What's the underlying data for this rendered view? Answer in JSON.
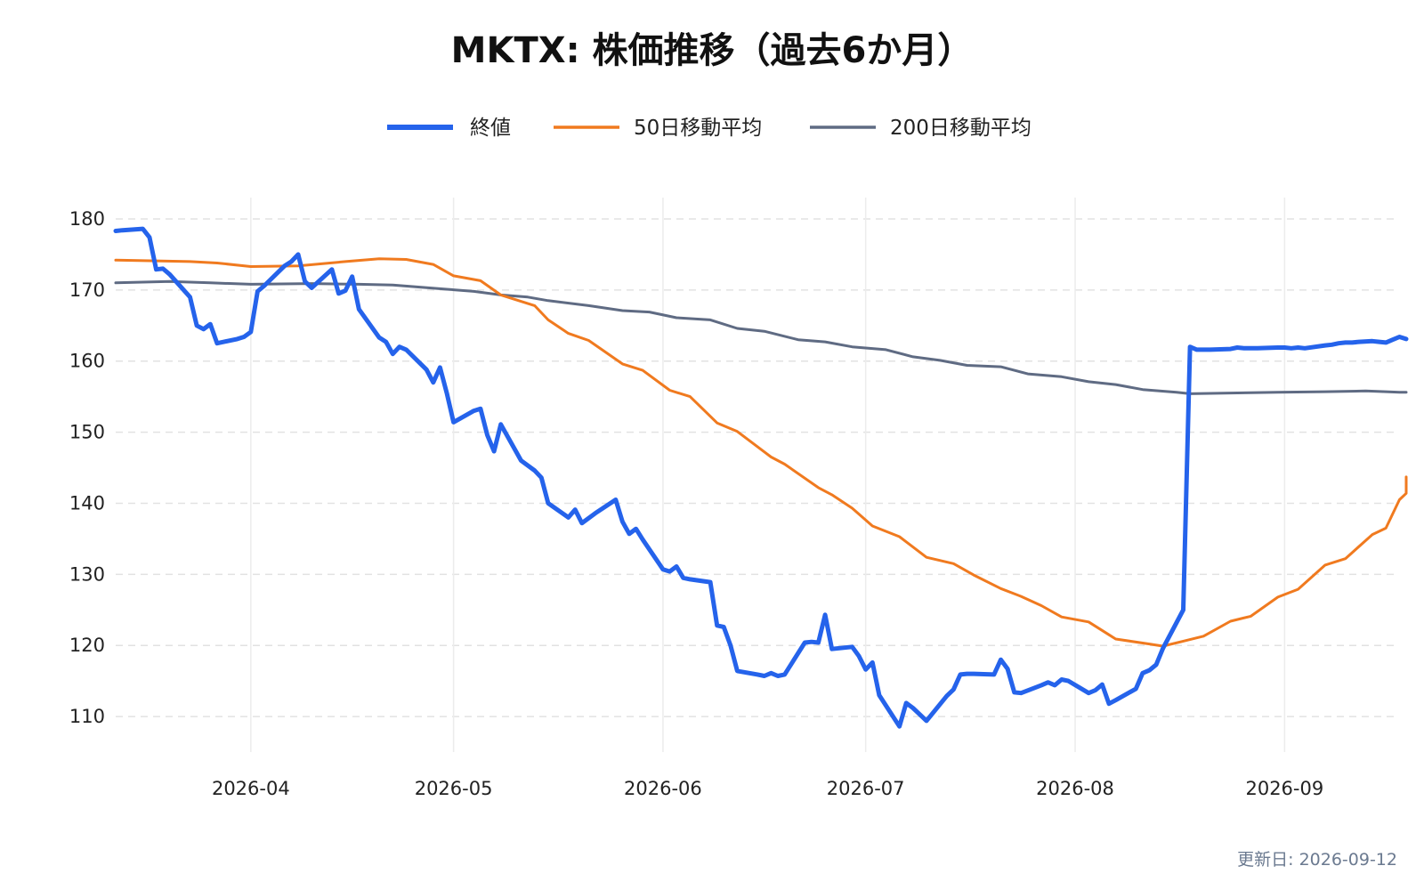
{
  "chart_data": {
    "type": "line",
    "title": "MKTX: 株価推移（過去6か月）",
    "xlabel": "",
    "ylabel": "",
    "x_type": "date",
    "xlim": [
      "2026-03-12",
      "2026-09-19"
    ],
    "ylim": [
      105,
      183
    ],
    "yticks": [
      110,
      120,
      130,
      140,
      150,
      160,
      170,
      180
    ],
    "xticks": [
      "2026-04-01",
      "2026-05-01",
      "2026-06-01",
      "2026-07-01",
      "2026-08-01",
      "2026-09-01"
    ],
    "xtick_labels": [
      "2026-04",
      "2026-05",
      "2026-06",
      "2026-07",
      "2026-08",
      "2026-09"
    ],
    "grid": true,
    "legend_position": "top-center",
    "updated_label": "更新日: 2026-09-12",
    "series": [
      {
        "name": "終値",
        "color": "#2563eb",
        "width": 5,
        "points": [
          [
            "2026-03-12",
            178.3
          ],
          [
            "2026-03-13",
            178.4
          ],
          [
            "2026-03-16",
            178.6
          ],
          [
            "2026-03-17",
            177.4
          ],
          [
            "2026-03-18",
            172.9
          ],
          [
            "2026-03-19",
            173.0
          ],
          [
            "2026-03-20",
            172.2
          ],
          [
            "2026-03-23",
            169.0
          ],
          [
            "2026-03-24",
            165.0
          ],
          [
            "2026-03-25",
            164.5
          ],
          [
            "2026-03-26",
            165.2
          ],
          [
            "2026-03-27",
            162.5
          ],
          [
            "2026-03-30",
            163.1
          ],
          [
            "2026-03-31",
            163.4
          ],
          [
            "2026-04-01",
            164.1
          ],
          [
            "2026-04-02",
            169.8
          ],
          [
            "2026-04-03",
            170.6
          ],
          [
            "2026-04-06",
            173.4
          ],
          [
            "2026-04-07",
            174.0
          ],
          [
            "2026-04-08",
            175.0
          ],
          [
            "2026-04-09",
            171.2
          ],
          [
            "2026-04-10",
            170.3
          ],
          [
            "2026-04-13",
            172.9
          ],
          [
            "2026-04-14",
            169.5
          ],
          [
            "2026-04-15",
            169.9
          ],
          [
            "2026-04-16",
            171.9
          ],
          [
            "2026-04-17",
            167.3
          ],
          [
            "2026-04-20",
            163.3
          ],
          [
            "2026-04-21",
            162.7
          ],
          [
            "2026-04-22",
            161.0
          ],
          [
            "2026-04-23",
            162.0
          ],
          [
            "2026-04-24",
            161.6
          ],
          [
            "2026-04-27",
            158.8
          ],
          [
            "2026-04-28",
            157.0
          ],
          [
            "2026-04-29",
            159.1
          ],
          [
            "2026-04-30",
            155.5
          ],
          [
            "2026-05-01",
            151.4
          ],
          [
            "2026-05-04",
            153.0
          ],
          [
            "2026-05-05",
            153.3
          ],
          [
            "2026-05-06",
            149.6
          ],
          [
            "2026-05-07",
            147.3
          ],
          [
            "2026-05-08",
            151.1
          ],
          [
            "2026-05-11",
            146.0
          ],
          [
            "2026-05-13",
            144.6
          ],
          [
            "2026-05-14",
            143.6
          ],
          [
            "2026-05-15",
            140.0
          ],
          [
            "2026-05-18",
            138.0
          ],
          [
            "2026-05-19",
            139.1
          ],
          [
            "2026-05-20",
            137.2
          ],
          [
            "2026-05-22",
            138.6
          ],
          [
            "2026-05-25",
            140.5
          ],
          [
            "2026-05-26",
            137.4
          ],
          [
            "2026-05-27",
            135.7
          ],
          [
            "2026-05-28",
            136.4
          ],
          [
            "2026-05-29",
            134.9
          ],
          [
            "2026-06-01",
            130.7
          ],
          [
            "2026-06-02",
            130.4
          ],
          [
            "2026-06-03",
            131.1
          ],
          [
            "2026-06-04",
            129.5
          ],
          [
            "2026-06-05",
            129.3
          ],
          [
            "2026-06-08",
            128.9
          ],
          [
            "2026-06-09",
            122.8
          ],
          [
            "2026-06-10",
            122.6
          ],
          [
            "2026-06-11",
            120.0
          ],
          [
            "2026-06-12",
            116.4
          ],
          [
            "2026-06-15",
            115.9
          ],
          [
            "2026-06-16",
            115.7
          ],
          [
            "2026-06-17",
            116.1
          ],
          [
            "2026-06-18",
            115.7
          ],
          [
            "2026-06-19",
            115.9
          ],
          [
            "2026-06-22",
            120.4
          ],
          [
            "2026-06-23",
            120.5
          ],
          [
            "2026-06-24",
            120.4
          ],
          [
            "2026-06-25",
            124.3
          ],
          [
            "2026-06-26",
            119.5
          ],
          [
            "2026-06-29",
            119.8
          ],
          [
            "2026-06-30",
            118.5
          ],
          [
            "2026-07-01",
            116.6
          ],
          [
            "2026-07-02",
            117.6
          ],
          [
            "2026-07-03",
            113.0
          ],
          [
            "2026-07-06",
            108.6
          ],
          [
            "2026-07-07",
            111.9
          ],
          [
            "2026-07-08",
            111.2
          ],
          [
            "2026-07-09",
            110.3
          ],
          [
            "2026-07-10",
            109.4
          ],
          [
            "2026-07-13",
            112.9
          ],
          [
            "2026-07-14",
            113.8
          ],
          [
            "2026-07-15",
            115.9
          ],
          [
            "2026-07-16",
            116.0
          ],
          [
            "2026-07-17",
            116.0
          ],
          [
            "2026-07-20",
            115.9
          ],
          [
            "2026-07-21",
            118.0
          ],
          [
            "2026-07-22",
            116.7
          ],
          [
            "2026-07-23",
            113.4
          ],
          [
            "2026-07-24",
            113.3
          ],
          [
            "2026-07-27",
            114.4
          ],
          [
            "2026-07-28",
            114.8
          ],
          [
            "2026-07-29",
            114.4
          ],
          [
            "2026-07-30",
            115.2
          ],
          [
            "2026-07-31",
            115.0
          ],
          [
            "2026-08-03",
            113.3
          ],
          [
            "2026-08-04",
            113.7
          ],
          [
            "2026-08-05",
            114.5
          ],
          [
            "2026-08-06",
            111.8
          ],
          [
            "2026-08-07",
            112.3
          ],
          [
            "2026-08-10",
            113.9
          ],
          [
            "2026-08-11",
            116.1
          ],
          [
            "2026-08-12",
            116.5
          ],
          [
            "2026-08-13",
            117.3
          ],
          [
            "2026-08-14",
            119.6
          ],
          [
            "2026-08-17",
            125.0
          ],
          [
            "2026-08-18",
            162.0
          ],
          [
            "2026-08-19",
            161.6
          ],
          [
            "2026-08-20",
            161.6
          ],
          [
            "2026-08-21",
            161.6
          ],
          [
            "2026-08-24",
            161.7
          ],
          [
            "2026-08-25",
            161.9
          ],
          [
            "2026-08-26",
            161.8
          ],
          [
            "2026-08-27",
            161.8
          ],
          [
            "2026-08-28",
            161.8
          ],
          [
            "2026-08-31",
            161.9
          ],
          [
            "2026-09-01",
            161.9
          ],
          [
            "2026-09-02",
            161.8
          ],
          [
            "2026-09-03",
            161.9
          ],
          [
            "2026-09-04",
            161.8
          ],
          [
            "2026-09-07",
            162.2
          ],
          [
            "2026-09-08",
            162.3
          ],
          [
            "2026-09-09",
            162.5
          ],
          [
            "2026-09-10",
            162.6
          ],
          [
            "2026-09-11",
            162.6
          ],
          [
            "2026-09-12",
            162.7
          ],
          [
            "2026-09-14",
            162.8
          ],
          [
            "2026-09-15",
            162.7
          ],
          [
            "2026-09-16",
            162.6
          ],
          [
            "2026-09-17",
            163.0
          ],
          [
            "2026-09-18",
            163.4
          ],
          [
            "2026-09-19",
            163.1
          ]
        ]
      },
      {
        "name": "50日移動平均",
        "color": "#f07a1f",
        "width": 3,
        "points": [
          [
            "2026-03-12",
            174.2
          ],
          [
            "2026-03-23",
            174.0
          ],
          [
            "2026-03-27",
            173.8
          ],
          [
            "2026-04-01",
            173.3
          ],
          [
            "2026-04-08",
            173.4
          ],
          [
            "2026-04-15",
            174.0
          ],
          [
            "2026-04-20",
            174.4
          ],
          [
            "2026-04-24",
            174.3
          ],
          [
            "2026-04-28",
            173.6
          ],
          [
            "2026-05-01",
            172.0
          ],
          [
            "2026-05-05",
            171.3
          ],
          [
            "2026-05-08",
            169.3
          ],
          [
            "2026-05-13",
            167.8
          ],
          [
            "2026-05-15",
            165.8
          ],
          [
            "2026-05-18",
            163.9
          ],
          [
            "2026-05-21",
            162.9
          ],
          [
            "2026-05-26",
            159.6
          ],
          [
            "2026-05-29",
            158.7
          ],
          [
            "2026-06-02",
            155.9
          ],
          [
            "2026-06-05",
            155.0
          ],
          [
            "2026-06-09",
            151.3
          ],
          [
            "2026-06-12",
            150.1
          ],
          [
            "2026-06-17",
            146.5
          ],
          [
            "2026-06-19",
            145.5
          ],
          [
            "2026-06-24",
            142.2
          ],
          [
            "2026-06-26",
            141.2
          ],
          [
            "2026-06-29",
            139.3
          ],
          [
            "2026-07-02",
            136.8
          ],
          [
            "2026-07-06",
            135.3
          ],
          [
            "2026-07-10",
            132.4
          ],
          [
            "2026-07-14",
            131.5
          ],
          [
            "2026-07-17",
            129.9
          ],
          [
            "2026-07-21",
            128.0
          ],
          [
            "2026-07-24",
            126.9
          ],
          [
            "2026-07-27",
            125.6
          ],
          [
            "2026-07-30",
            124.0
          ],
          [
            "2026-08-03",
            123.3
          ],
          [
            "2026-08-06",
            121.5
          ],
          [
            "2026-08-07",
            120.9
          ],
          [
            "2026-08-12",
            120.2
          ],
          [
            "2026-08-14",
            119.9
          ],
          [
            "2026-08-17",
            120.6
          ],
          [
            "2026-08-20",
            121.3
          ],
          [
            "2026-08-24",
            123.4
          ],
          [
            "2026-08-27",
            124.1
          ],
          [
            "2026-08-31",
            126.8
          ],
          [
            "2026-09-03",
            127.9
          ],
          [
            "2026-09-07",
            131.3
          ],
          [
            "2026-09-10",
            132.2
          ],
          [
            "2026-09-14",
            135.6
          ],
          [
            "2026-09-16",
            136.5
          ],
          [
            "2026-09-18",
            140.5
          ],
          [
            "2026-09-19",
            141.4
          ],
          [
            "2026-09-19",
            143.7
          ]
        ]
      },
      {
        "name": "200日移動平均",
        "color": "#5f6b83",
        "width": 3,
        "points": [
          [
            "2026-03-12",
            171.0
          ],
          [
            "2026-03-20",
            171.2
          ],
          [
            "2026-03-26",
            171.0
          ],
          [
            "2026-04-01",
            170.8
          ],
          [
            "2026-04-10",
            170.9
          ],
          [
            "2026-04-17",
            170.8
          ],
          [
            "2026-04-22",
            170.7
          ],
          [
            "2026-04-30",
            170.1
          ],
          [
            "2026-05-04",
            169.8
          ],
          [
            "2026-05-08",
            169.3
          ],
          [
            "2026-05-12",
            169.0
          ],
          [
            "2026-05-15",
            168.5
          ],
          [
            "2026-05-21",
            167.8
          ],
          [
            "2026-05-26",
            167.1
          ],
          [
            "2026-05-30",
            166.9
          ],
          [
            "2026-06-03",
            166.1
          ],
          [
            "2026-06-08",
            165.8
          ],
          [
            "2026-06-12",
            164.6
          ],
          [
            "2026-06-16",
            164.2
          ],
          [
            "2026-06-21",
            163.0
          ],
          [
            "2026-06-25",
            162.7
          ],
          [
            "2026-06-29",
            162.0
          ],
          [
            "2026-07-04",
            161.6
          ],
          [
            "2026-07-08",
            160.6
          ],
          [
            "2026-07-12",
            160.1
          ],
          [
            "2026-07-16",
            159.4
          ],
          [
            "2026-07-21",
            159.2
          ],
          [
            "2026-07-25",
            158.2
          ],
          [
            "2026-07-30",
            157.8
          ],
          [
            "2026-08-03",
            157.1
          ],
          [
            "2026-08-07",
            156.7
          ],
          [
            "2026-08-11",
            156.0
          ],
          [
            "2026-08-16",
            155.6
          ],
          [
            "2026-08-18",
            155.4
          ],
          [
            "2026-08-24",
            155.5
          ],
          [
            "2026-08-31",
            155.6
          ],
          [
            "2026-09-07",
            155.7
          ],
          [
            "2026-09-13",
            155.8
          ],
          [
            "2026-09-16",
            155.7
          ],
          [
            "2026-09-18",
            155.6
          ],
          [
            "2026-09-19",
            155.6
          ]
        ]
      }
    ]
  }
}
